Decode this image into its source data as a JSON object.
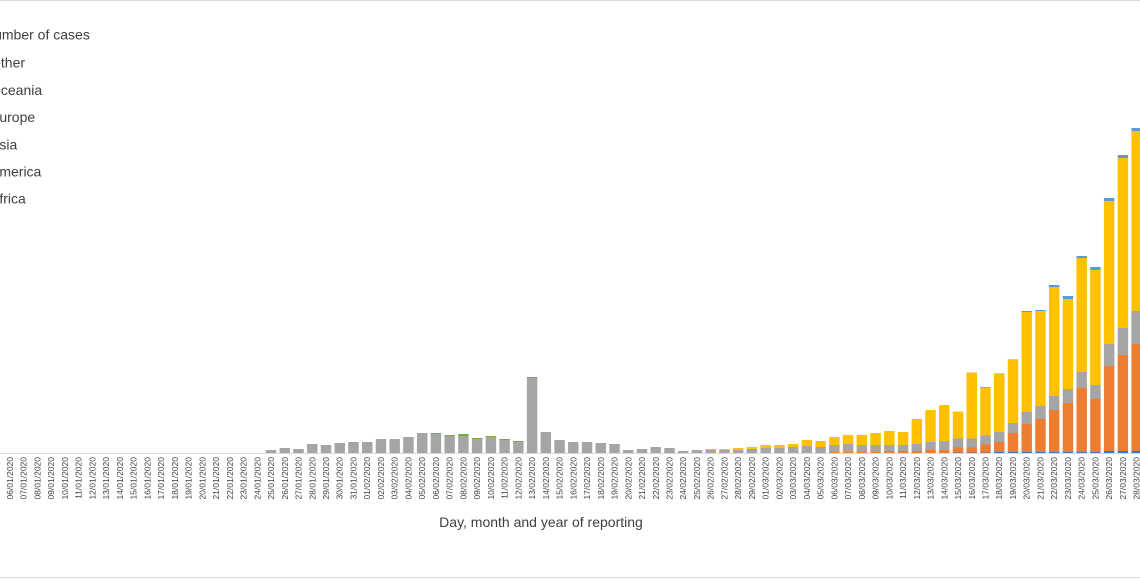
{
  "chart_data": {
    "type": "stacked_bar",
    "x_label": "Day, month and year of reporting",
    "legend_title": "Number of cases",
    "legend": "upper left",
    "ylim": [
      0,
      90000
    ],
    "categories": [
      "06/01/2020",
      "07/01/2020",
      "08/01/2020",
      "09/01/2020",
      "10/01/2020",
      "11/01/2020",
      "12/01/2020",
      "13/01/2020",
      "14/01/2020",
      "15/01/2020",
      "16/01/2020",
      "17/01/2020",
      "18/01/2020",
      "19/01/2020",
      "20/01/2020",
      "21/01/2020",
      "22/01/2020",
      "23/01/2020",
      "24/01/2020",
      "25/01/2020",
      "26/01/2020",
      "27/01/2020",
      "28/01/2020",
      "29/01/2020",
      "30/01/2020",
      "31/01/2020",
      "01/02/2020",
      "02/02/2020",
      "03/02/2020",
      "04/02/2020",
      "05/02/2020",
      "06/02/2020",
      "07/02/2020",
      "08/02/2020",
      "09/02/2020",
      "10/02/2020",
      "11/02/2020",
      "12/02/2020",
      "13/02/2020",
      "14/02/2020",
      "15/02/2020",
      "16/02/2020",
      "17/02/2020",
      "18/02/2020",
      "19/02/2020",
      "20/02/2020",
      "21/02/2020",
      "22/02/2020",
      "23/02/2020",
      "24/02/2020",
      "25/02/2020",
      "26/02/2020",
      "27/02/2020",
      "28/02/2020",
      "29/02/2020",
      "01/03/2020",
      "02/03/2020",
      "03/03/2020",
      "04/03/2020",
      "05/03/2020",
      "06/03/2020",
      "07/03/2020",
      "08/03/2020",
      "09/03/2020",
      "10/03/2020",
      "11/03/2020",
      "12/03/2020",
      "13/03/2020",
      "14/03/2020",
      "15/03/2020",
      "16/03/2020",
      "17/03/2020",
      "18/03/2020",
      "19/03/2020",
      "20/03/2020",
      "21/03/2020",
      "22/03/2020",
      "23/03/2020",
      "24/03/2020",
      "25/03/2020",
      "26/03/2020",
      "27/03/2020",
      "28/03/2020"
    ],
    "series": [
      {
        "name": "Africa",
        "color": "#4472c4",
        "values": [
          0,
          0,
          0,
          0,
          0,
          0,
          0,
          0,
          0,
          0,
          0,
          0,
          0,
          0,
          0,
          0,
          0,
          0,
          0,
          0,
          0,
          0,
          0,
          0,
          0,
          0,
          0,
          0,
          0,
          0,
          0,
          0,
          0,
          0,
          0,
          0,
          0,
          0,
          0,
          0,
          0,
          0,
          0,
          0,
          0,
          0,
          0,
          0,
          0,
          0,
          0,
          0,
          0,
          0,
          0,
          0,
          0,
          0,
          0,
          0,
          0,
          0,
          0,
          0,
          0,
          0,
          0,
          0,
          0,
          100,
          100,
          100,
          200,
          200,
          200,
          200,
          200,
          200,
          200,
          200,
          400,
          400,
          400
        ]
      },
      {
        "name": "America",
        "color": "#ed7d31",
        "values": [
          0,
          0,
          0,
          0,
          0,
          0,
          0,
          0,
          0,
          0,
          0,
          0,
          0,
          0,
          0,
          0,
          0,
          0,
          0,
          0,
          0,
          0,
          0,
          0,
          0,
          0,
          0,
          0,
          0,
          0,
          0,
          0,
          0,
          0,
          0,
          0,
          0,
          0,
          0,
          0,
          0,
          0,
          0,
          0,
          0,
          0,
          0,
          0,
          0,
          0,
          0,
          0,
          0,
          0,
          0,
          0,
          0,
          0,
          0,
          0,
          200,
          200,
          200,
          200,
          400,
          400,
          400,
          600,
          600,
          1000,
          1000,
          1600,
          2000,
          3800,
          5600,
          6600,
          8400,
          9800,
          12800,
          10600,
          17000,
          19200,
          21400
        ]
      },
      {
        "name": "Asia",
        "color": "#a5a5a5",
        "values": [
          0,
          0,
          0,
          0,
          0,
          0,
          0,
          0,
          0,
          0,
          0,
          0,
          0,
          0,
          0,
          0,
          0,
          0,
          0,
          600,
          1000,
          800,
          1800,
          1600,
          2000,
          2200,
          2200,
          2800,
          2800,
          3200,
          4000,
          3800,
          3400,
          3400,
          2800,
          3200,
          2600,
          2200,
          15000,
          4200,
          2600,
          2200,
          2200,
          2000,
          1800,
          600,
          800,
          1200,
          1000,
          400,
          600,
          600,
          600,
          600,
          800,
          1000,
          1000,
          1200,
          1400,
          1200,
          1400,
          1600,
          1400,
          1400,
          1200,
          1200,
          1400,
          1600,
          1800,
          1800,
          1800,
          1800,
          2000,
          2000,
          2400,
          2600,
          2800,
          2800,
          3200,
          2800,
          4400,
          5400,
          6600
        ]
      },
      {
        "name": "Europe",
        "color": "#ffc000",
        "values": [
          0,
          0,
          0,
          0,
          0,
          0,
          0,
          0,
          0,
          0,
          0,
          0,
          0,
          0,
          0,
          0,
          0,
          0,
          0,
          0,
          0,
          0,
          0,
          0,
          0,
          0,
          0,
          0,
          0,
          0,
          0,
          0,
          0,
          0,
          0,
          0,
          0,
          0,
          0,
          0,
          0,
          0,
          0,
          0,
          0,
          0,
          0,
          0,
          0,
          0,
          0,
          200,
          200,
          400,
          400,
          600,
          600,
          600,
          1200,
          1200,
          1600,
          1800,
          2000,
          2400,
          2800,
          2600,
          5000,
          6400,
          7200,
          5400,
          13200,
          9600,
          11600,
          12600,
          20000,
          19000,
          21800,
          18000,
          22800,
          23000,
          28600,
          34000,
          36000
        ]
      },
      {
        "name": "Oceania",
        "color": "#5b9bd5",
        "values": [
          0,
          0,
          0,
          0,
          0,
          0,
          0,
          0,
          0,
          0,
          0,
          0,
          0,
          0,
          0,
          0,
          0,
          0,
          0,
          0,
          0,
          0,
          0,
          0,
          0,
          0,
          0,
          0,
          0,
          0,
          0,
          0,
          0,
          0,
          0,
          0,
          0,
          0,
          0,
          0,
          0,
          0,
          0,
          0,
          0,
          0,
          0,
          0,
          0,
          0,
          0,
          0,
          0,
          0,
          0,
          0,
          0,
          0,
          0,
          0,
          0,
          0,
          0,
          0,
          0,
          0,
          0,
          0,
          0,
          0,
          0,
          100,
          100,
          100,
          200,
          200,
          400,
          600,
          400,
          600,
          600,
          600,
          600
        ]
      },
      {
        "name": "Other",
        "color": "#70ad47",
        "values": [
          0,
          0,
          0,
          0,
          0,
          0,
          0,
          0,
          0,
          0,
          0,
          0,
          0,
          0,
          0,
          0,
          0,
          0,
          0,
          0,
          0,
          0,
          0,
          0,
          0,
          0,
          0,
          0,
          0,
          0,
          0,
          200,
          200,
          400,
          200,
          200,
          200,
          200,
          200,
          0,
          0,
          0,
          0,
          0,
          0,
          0,
          0,
          0,
          0,
          0,
          0,
          0,
          0,
          0,
          0,
          0,
          0,
          0,
          0,
          0,
          0,
          0,
          0,
          0,
          0,
          0,
          0,
          0,
          0,
          0,
          0,
          0,
          0,
          0,
          0,
          0,
          0,
          0,
          0,
          0,
          0,
          0,
          0
        ]
      }
    ]
  }
}
